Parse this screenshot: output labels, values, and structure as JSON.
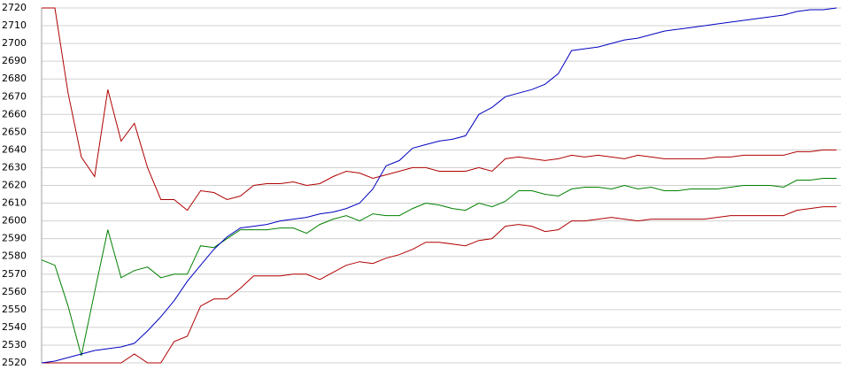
{
  "chart_data": {
    "type": "line",
    "categories": [
      null,
      null,
      null,
      null,
      null,
      null,
      null,
      null,
      null,
      null,
      null,
      null,
      null,
      null,
      null,
      null,
      null,
      null,
      null,
      null,
      null,
      null,
      null,
      null,
      null,
      null,
      null,
      null,
      null,
      null,
      null,
      null,
      null,
      null,
      null,
      null,
      null,
      null,
      null,
      null,
      null,
      null,
      null,
      null,
      null,
      null,
      null,
      null,
      null,
      null,
      null,
      null,
      null,
      null,
      null,
      null,
      null,
      null,
      null,
      null,
      null
    ],
    "series": [
      {
        "color": "#b00000",
        "values": [
          2720,
          2720,
          2672,
          2636,
          2625,
          2674,
          2645,
          2655,
          2630,
          2612,
          2612,
          2606,
          2617,
          2616,
          2612,
          2614,
          2620,
          2621,
          2621,
          2622,
          2620,
          2621,
          2625,
          2628,
          2627,
          2624,
          2626,
          2628,
          2630,
          2630,
          2628,
          2628,
          2628,
          2630,
          2628,
          2635,
          2636,
          2635,
          2634,
          2635,
          2637,
          2636,
          2637,
          2636,
          2635,
          2637,
          2636,
          2635,
          2635,
          2635,
          2635,
          2636,
          2636,
          2637,
          2637,
          2637,
          2637,
          2639,
          2639,
          2640,
          2640
        ]
      },
      {
        "color": "#008000",
        "values": [
          2578,
          2575,
          2552,
          2524,
          2560,
          2595,
          2568,
          2572,
          2574,
          2568,
          2570,
          2570,
          2586,
          2585,
          2590,
          2595,
          2595,
          2595,
          2596,
          2596,
          2593,
          2598,
          2601,
          2603,
          2600,
          2604,
          2603,
          2603,
          2607,
          2610,
          2609,
          2607,
          2606,
          2610,
          2608,
          2611,
          2617,
          2617,
          2615,
          2614,
          2618,
          2619,
          2619,
          2618,
          2620,
          2618,
          2619,
          2617,
          2617,
          2618,
          2618,
          2618,
          2619,
          2620,
          2620,
          2620,
          2619,
          2623,
          2623,
          2624,
          2624
        ]
      },
      {
        "color": "#b00000",
        "values": [
          2520,
          2520,
          2520,
          2520,
          2520,
          2520,
          2520,
          2525,
          2520,
          2520,
          2532,
          2535,
          2552,
          2556,
          2556,
          2562,
          2569,
          2569,
          2569,
          2570,
          2570,
          2567,
          2571,
          2575,
          2577,
          2576,
          2579,
          2581,
          2584,
          2588,
          2588,
          2587,
          2586,
          2589,
          2590,
          2597,
          2598,
          2597,
          2594,
          2595,
          2600,
          2600,
          2601,
          2602,
          2601,
          2600,
          2601,
          2601,
          2601,
          2601,
          2601,
          2602,
          2603,
          2603,
          2603,
          2603,
          2603,
          2606,
          2607,
          2608,
          2608
        ]
      },
      {
        "color": "#0000c0",
        "values": [
          2520,
          2521,
          2523,
          2525,
          2527,
          2528,
          2529,
          2531,
          2538,
          2546,
          2555,
          2566,
          2575,
          2584,
          2591,
          2596,
          2597,
          2598,
          2600,
          2601,
          2602,
          2604,
          2605,
          2607,
          2610,
          2618,
          2631,
          2634,
          2641,
          2643,
          2645,
          2646,
          2648,
          2660,
          2664,
          2670,
          2672,
          2674,
          2677,
          2683,
          2696,
          2697,
          2698,
          2700,
          2702,
          2703,
          2705,
          2707,
          2708,
          2709,
          2710,
          2711,
          2712,
          2713,
          2714,
          2715,
          2716,
          2718,
          2719,
          2719,
          2720
        ]
      }
    ],
    "ylim": [
      2520,
      2720
    ],
    "yticks": [
      2520,
      2530,
      2540,
      2550,
      2560,
      2570,
      2580,
      2590,
      2600,
      2610,
      2620,
      2630,
      2640,
      2650,
      2660,
      2670,
      2680,
      2690,
      2700,
      2710,
      2720
    ],
    "grid": true
  }
}
